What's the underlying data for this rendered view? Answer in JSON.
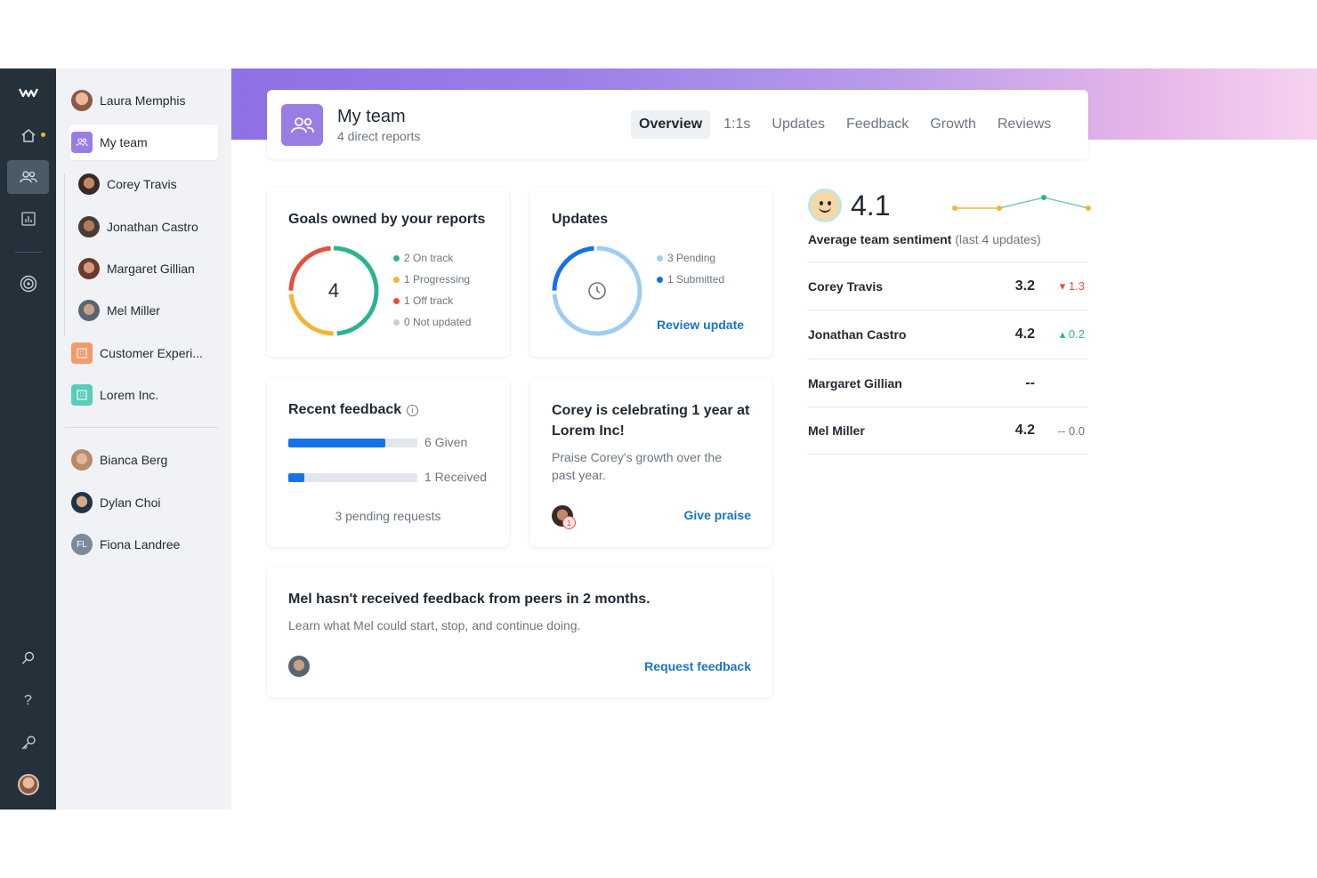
{
  "rail": {
    "icons": [
      "logo-icon",
      "home-icon",
      "team-icon",
      "analytics-icon",
      "goals-icon",
      "search-icon",
      "help-icon",
      "key-icon",
      "profile-avatar"
    ]
  },
  "sidebar": {
    "user": "Laura Memphis",
    "my_team": "My team",
    "reports": [
      "Corey Travis",
      "Jonathan Castro",
      "Margaret Gillian",
      "Mel Miller"
    ],
    "groups": [
      "Customer Experi...",
      "Lorem Inc."
    ],
    "people": [
      "Bianca Berg",
      "Dylan Choi",
      "Fiona Landree"
    ],
    "fiona_initials": "FL"
  },
  "header": {
    "title": "My team",
    "subtitle": "4 direct reports",
    "tabs": [
      "Overview",
      "1:1s",
      "Updates",
      "Feedback",
      "Growth",
      "Reviews"
    ],
    "active_tab": "Overview"
  },
  "goals": {
    "title": "Goals owned by your reports",
    "total": "4",
    "legend": [
      "2 On track",
      "1 Progressing",
      "1 Off track",
      "0 Not updated"
    ],
    "values": [
      2,
      1,
      1,
      0
    ],
    "colors": [
      "#2bb48f",
      "#f2b533",
      "#e0523f",
      "#c9ced4"
    ]
  },
  "updates": {
    "title": "Updates",
    "legend": [
      "3 Pending",
      "1 Submitted"
    ],
    "values": [
      3,
      1
    ],
    "colors": [
      "#9fcdf2",
      "#1473e6"
    ],
    "link": "Review update"
  },
  "feedback": {
    "title": "Recent feedback",
    "given": "6 Given",
    "received": "1 Received",
    "given_fraction": 0.75,
    "received_fraction": 0.125,
    "pending": "3 pending requests"
  },
  "celebration": {
    "title": "Corey is celebrating 1 year at Lorem Inc!",
    "body": "Praise Corey's growth over the past year.",
    "badge": "1",
    "link": "Give praise"
  },
  "peer": {
    "title": "Mel hasn't received feedback from peers in 2 months.",
    "body": "Learn what Mel could start, stop, and continue doing.",
    "link": "Request feedback"
  },
  "sentiment": {
    "score": "4.1",
    "label": "Average team sentiment",
    "label_suffix": "(last 4 updates)",
    "trend": [
      3.9,
      3.9,
      4.3,
      3.9
    ],
    "rows": [
      {
        "name": "Corey Travis",
        "score": "3.2",
        "delta": "▾ 1.3",
        "color": "#e0523f"
      },
      {
        "name": "Jonathan Castro",
        "score": "4.2",
        "delta": "▴ 0.2",
        "color": "#2bb48f"
      },
      {
        "name": "Margaret Gillian",
        "score": "--",
        "delta": "",
        "color": "#6b7680"
      },
      {
        "name": "Mel Miller",
        "score": "4.2",
        "delta": "-- 0.0",
        "color": "#6b7680"
      }
    ]
  }
}
